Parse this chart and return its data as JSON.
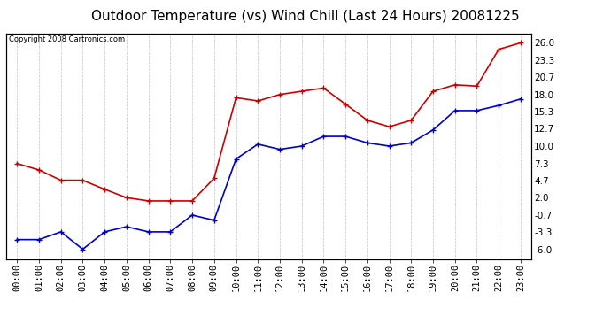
{
  "title": "Outdoor Temperature (vs) Wind Chill (Last 24 Hours) 20081225",
  "copyright": "Copyright 2008 Cartronics.com",
  "hours": [
    "00:00",
    "01:00",
    "02:00",
    "03:00",
    "04:00",
    "05:00",
    "06:00",
    "07:00",
    "08:00",
    "09:00",
    "10:00",
    "11:00",
    "12:00",
    "13:00",
    "14:00",
    "15:00",
    "16:00",
    "17:00",
    "18:00",
    "19:00",
    "20:00",
    "21:00",
    "22:00",
    "23:00"
  ],
  "temp": [
    7.3,
    6.3,
    4.7,
    4.7,
    3.3,
    2.0,
    1.5,
    1.5,
    1.5,
    5.0,
    17.5,
    17.0,
    18.0,
    18.5,
    19.0,
    16.5,
    14.0,
    13.0,
    14.0,
    18.5,
    19.5,
    19.3,
    25.0,
    26.0
  ],
  "windchill": [
    -4.5,
    -4.5,
    -3.3,
    -6.0,
    -3.3,
    -2.5,
    -3.3,
    -3.3,
    -0.7,
    -1.5,
    8.0,
    10.3,
    9.5,
    10.0,
    11.5,
    11.5,
    10.5,
    10.0,
    10.5,
    12.5,
    15.5,
    15.5,
    16.3,
    17.3
  ],
  "temp_color": "#cc0000",
  "windchill_color": "#0000cc",
  "marker": "+",
  "markersize": 5,
  "linewidth": 1.2,
  "bg_color": "#ffffff",
  "grid_color": "#bbbbbb",
  "yticks": [
    -6.0,
    -3.3,
    -0.7,
    2.0,
    4.7,
    7.3,
    10.0,
    12.7,
    15.3,
    18.0,
    20.7,
    23.3,
    26.0
  ],
  "ylim": [
    -7.5,
    27.5
  ],
  "title_fontsize": 11,
  "copyright_fontsize": 6,
  "tick_fontsize": 7.5
}
